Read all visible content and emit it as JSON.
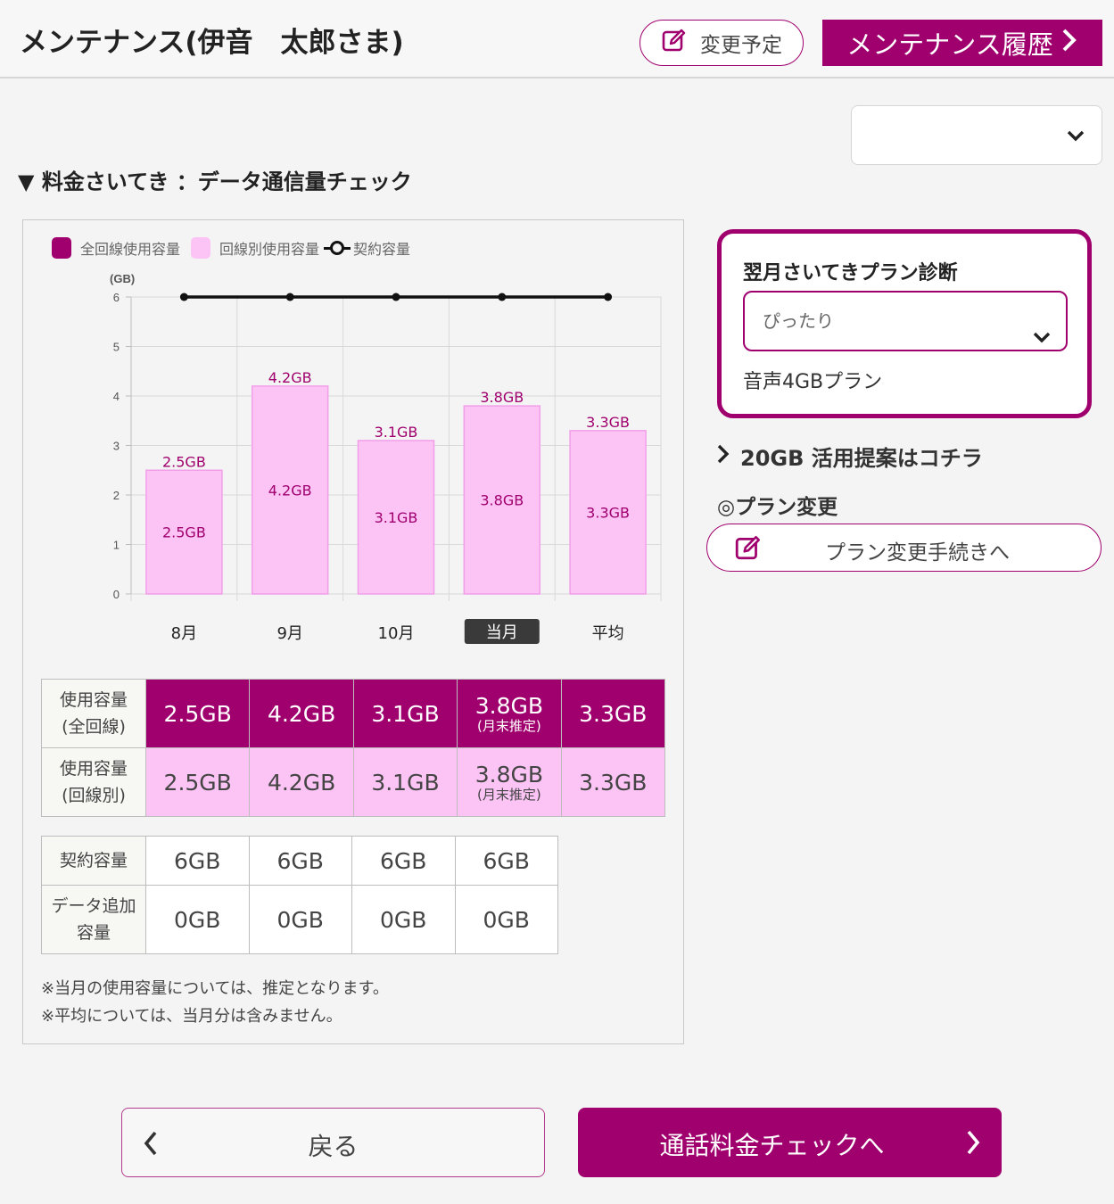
{
  "header": {
    "title": "メンテナンス(伊音　太郎さま)",
    "change_schedule_label": "変更予定",
    "history_label": "メンテナンス履歴"
  },
  "month_select": {
    "value": ""
  },
  "section": {
    "heading": "▼ 料金さいてき ：データ通信量チェック"
  },
  "legend": {
    "all_lines": "全回線使用容量",
    "per_line": "回線別使用容量",
    "contract": "契約容量"
  },
  "chart_data": {
    "type": "bar",
    "ylabel": "(GB)",
    "ylim": [
      0,
      6
    ],
    "yticks": [
      0,
      1,
      2,
      3,
      4,
      5,
      6
    ],
    "categories": [
      "8月",
      "9月",
      "10月",
      "当月",
      "平均"
    ],
    "highlighted_category": "当月",
    "series": [
      {
        "name": "回線別使用容量",
        "values": [
          2.5,
          4.2,
          3.1,
          3.8,
          3.3
        ],
        "labels": [
          "2.5GB",
          "4.2GB",
          "3.1GB",
          "3.8GB",
          "3.3GB"
        ],
        "color": "#fcc3f5"
      },
      {
        "name": "全回線使用容量",
        "values": [
          2.5,
          4.2,
          3.1,
          3.8,
          3.3
        ],
        "labels": [
          "2.5GB",
          "4.2GB",
          "3.1GB",
          "3.8GB",
          "3.3GB"
        ],
        "color": "#a0006e"
      },
      {
        "name": "契約容量",
        "type": "line",
        "values": [
          6,
          6,
          6,
          6,
          6
        ],
        "color": "#111111"
      }
    ],
    "grid": true
  },
  "usage_table": {
    "rows": [
      {
        "head": [
          "使用容量",
          "(全回線)"
        ],
        "values": [
          "2.5GB",
          "4.2GB",
          "3.1GB",
          "3.8GB",
          "3.3GB"
        ]
      },
      {
        "head": [
          "使用容量",
          "(回線別)"
        ],
        "values": [
          "2.5GB",
          "4.2GB",
          "3.1GB",
          "3.8GB",
          "3.3GB"
        ]
      }
    ],
    "estimate_note": "(月末推定)"
  },
  "contract_table": {
    "rows": [
      {
        "head": [
          "契約容量"
        ],
        "values": [
          "6GB",
          "6GB",
          "6GB",
          "6GB"
        ]
      },
      {
        "head": [
          "データ追加",
          "容量"
        ],
        "values": [
          "0GB",
          "0GB",
          "0GB",
          "0GB"
        ]
      }
    ]
  },
  "notes": [
    "※当月の使用容量については、推定となります。",
    "※平均については、当月分は含みません。"
  ],
  "diagnosis": {
    "title": "翌月さいてきプラン診断",
    "select_value": "ぴったり",
    "plan": "音声4GBプラン"
  },
  "links": {
    "suggest_20gb": "20GB 活用提案はコチラ",
    "plan_change_label": "◎プラン変更",
    "plan_change_button": "プラン変更手続きへ"
  },
  "footer": {
    "back_label": "戻る",
    "call_check_label": "通話料金チェックへ"
  },
  "colors": {
    "brand": "#a0006e",
    "bar_light": "#fcc3f5",
    "bar_light_border": "#f29fe9"
  },
  "icons": [
    "edit-icon",
    "chevron-right-icon",
    "chevron-down-icon",
    "chevron-left-icon"
  ]
}
